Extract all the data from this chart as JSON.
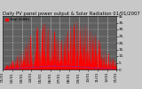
{
  "title": "Daily PV panel power output & Solar Radiation 01/01/2007",
  "legend_label": "Total (kWh)",
  "bg_color": "#c8c8c8",
  "plot_bg_color": "#606060",
  "grid_color": "#ffffff",
  "bar_color": "#ff0000",
  "line_color": "#4444ff",
  "n_points": 365,
  "y_max": 4000,
  "title_fontsize": 3.8,
  "tick_fontsize": 3.0,
  "ytick_vals": [
    0,
    500,
    1000,
    1500,
    2000,
    2500,
    3000,
    3500,
    4000
  ],
  "ytick_labels": [
    "0",
    "5.",
    "10.",
    "15.",
    "20.",
    "25.",
    "30.",
    "35.",
    "4k"
  ],
  "xlabel_count": 13
}
